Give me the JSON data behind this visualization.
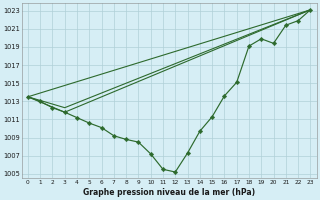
{
  "title": "Graphe pression niveau de la mer (hPa)",
  "bg_color": "#d6eef5",
  "grid_color": "#b0d0d8",
  "line_color": "#2d6a2d",
  "xlim": [
    -0.5,
    23.5
  ],
  "ylim": [
    1004.5,
    1023.8
  ],
  "yticks": [
    1005,
    1007,
    1009,
    1011,
    1013,
    1015,
    1017,
    1019,
    1021,
    1023
  ],
  "xticks": [
    0,
    1,
    2,
    3,
    4,
    5,
    6,
    7,
    8,
    9,
    10,
    11,
    12,
    13,
    14,
    15,
    16,
    17,
    18,
    19,
    20,
    21,
    22,
    23
  ],
  "main_series": [
    [
      0,
      1013.5
    ],
    [
      1,
      1013.0
    ],
    [
      2,
      1012.3
    ],
    [
      3,
      1011.8
    ],
    [
      4,
      1011.2
    ],
    [
      5,
      1010.6
    ],
    [
      6,
      1010.1
    ],
    [
      7,
      1009.2
    ],
    [
      8,
      1008.8
    ],
    [
      9,
      1008.5
    ],
    [
      10,
      1007.2
    ],
    [
      11,
      1005.5
    ],
    [
      12,
      1005.2
    ],
    [
      13,
      1007.3
    ],
    [
      14,
      1009.7
    ],
    [
      15,
      1011.3
    ],
    [
      16,
      1013.6
    ],
    [
      17,
      1015.1
    ],
    [
      18,
      1019.1
    ],
    [
      19,
      1019.9
    ],
    [
      20,
      1019.4
    ],
    [
      21,
      1021.4
    ],
    [
      22,
      1021.9
    ],
    [
      23,
      1023.1
    ]
  ],
  "line2_series": [
    [
      0,
      1013.5
    ],
    [
      3,
      1012.3
    ],
    [
      23,
      1023.1
    ]
  ],
  "line3_series": [
    [
      0,
      1013.5
    ],
    [
      3,
      1011.8
    ],
    [
      23,
      1023.1
    ]
  ],
  "line4_series": [
    [
      0,
      1013.5
    ],
    [
      23,
      1023.1
    ]
  ]
}
